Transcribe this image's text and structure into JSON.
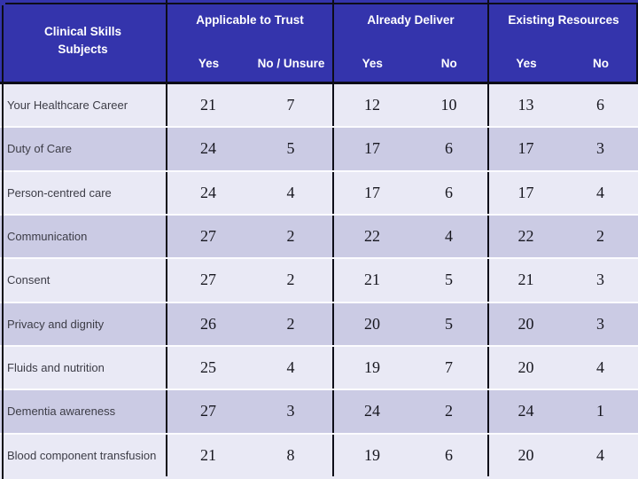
{
  "table": {
    "subjects_header": "Clinical Skills\nSubjects",
    "groups": [
      {
        "label": "Applicable to Trust",
        "sub": [
          "Yes",
          "No / Unsure"
        ]
      },
      {
        "label": "Already Deliver",
        "sub": [
          "Yes",
          "No"
        ]
      },
      {
        "label": "Existing Resources",
        "sub": [
          "Yes",
          "No"
        ]
      }
    ],
    "rows": [
      {
        "subject": "Your Healthcare Career",
        "values": [
          21,
          7,
          12,
          10,
          13,
          6
        ]
      },
      {
        "subject": "Duty of Care",
        "values": [
          24,
          5,
          17,
          6,
          17,
          3
        ]
      },
      {
        "subject": "Person-centred care",
        "values": [
          24,
          4,
          17,
          6,
          17,
          4
        ]
      },
      {
        "subject": "Communication",
        "values": [
          27,
          2,
          22,
          4,
          22,
          2
        ]
      },
      {
        "subject": "Consent",
        "values": [
          27,
          2,
          21,
          5,
          21,
          3
        ]
      },
      {
        "subject": "Privacy and dignity",
        "values": [
          26,
          2,
          20,
          5,
          20,
          3
        ]
      },
      {
        "subject": "Fluids and nutrition",
        "values": [
          25,
          4,
          19,
          7,
          20,
          4
        ]
      },
      {
        "subject": "Dementia awareness",
        "values": [
          27,
          3,
          24,
          2,
          24,
          1
        ]
      },
      {
        "subject": "Blood component transfusion",
        "values": [
          21,
          8,
          19,
          6,
          20,
          4
        ]
      }
    ],
    "colors": {
      "header_bg": "#3434AC",
      "header_text": "#FFFFFF",
      "row_light": "#E9E9F5",
      "row_dark": "#CBCBE4",
      "grid_line": "#0D0D18",
      "row_separator": "#FBFBFE"
    }
  }
}
